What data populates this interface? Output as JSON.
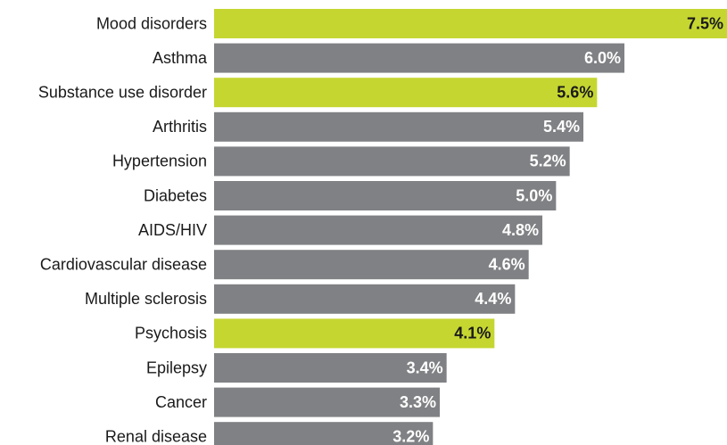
{
  "chart_data": {
    "type": "hbar",
    "categories": [
      "Mood disorders",
      "Asthma",
      "Substance use disorder",
      "Arthritis",
      "Hypertension",
      "Diabetes",
      "AIDS/HIV",
      "Cardiovascular disease",
      "Multiple sclerosis",
      "Psychosis",
      "Epilepsy",
      "Cancer",
      "Renal disease"
    ],
    "values": [
      7.5,
      6.0,
      5.6,
      5.4,
      5.2,
      5.0,
      4.8,
      4.6,
      4.4,
      4.1,
      3.4,
      3.3,
      3.2
    ],
    "value_labels": [
      "7.5%",
      "6.0%",
      "5.6%",
      "5.4%",
      "5.2%",
      "5.0%",
      "4.8%",
      "4.6%",
      "4.4%",
      "4.1%",
      "3.4%",
      "3.3%",
      "3.2%"
    ],
    "colors": [
      "#c5d631",
      "#808184",
      "#c5d631",
      "#808184",
      "#808184",
      "#808184",
      "#808184",
      "#808184",
      "#808184",
      "#c5d631",
      "#808184",
      "#808184",
      "#808184"
    ]
  }
}
